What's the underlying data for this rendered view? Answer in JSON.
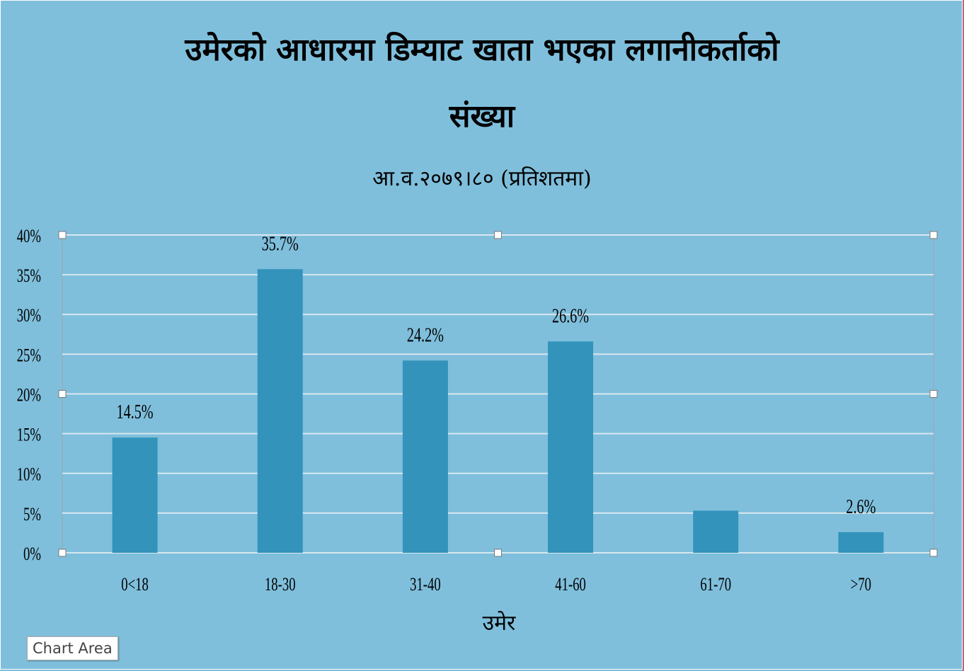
{
  "chart_data": {
    "type": "bar",
    "title_line1": "उमेरको आधारमा डिम्याट खाता भएका लगानीकर्ताको",
    "title_line2": "संख्या",
    "subtitle": "आ.व.२०७९।८० (प्रतिशतमा)",
    "xlabel": "उमेर",
    "ylabel": "",
    "categories": [
      "0<18",
      "18-30",
      "31-40",
      "41-60",
      "61-70",
      ">70"
    ],
    "values": [
      14.5,
      35.7,
      24.2,
      26.6,
      5.3,
      2.6
    ],
    "data_labels": [
      "14.5%",
      "35.7%",
      "24.2%",
      "26.6%",
      "",
      "2.6%"
    ],
    "yticks": [
      "0%",
      "5%",
      "10%",
      "15%",
      "20%",
      "25%",
      "30%",
      "35%",
      "40%"
    ],
    "ylim": [
      0,
      40
    ],
    "grid": true,
    "bar_color": "#3393bb",
    "background_color": "#7fbfdc",
    "gridline_color": "#d8e8ee"
  },
  "ui": {
    "chart_area_tooltip": "Chart Area"
  }
}
